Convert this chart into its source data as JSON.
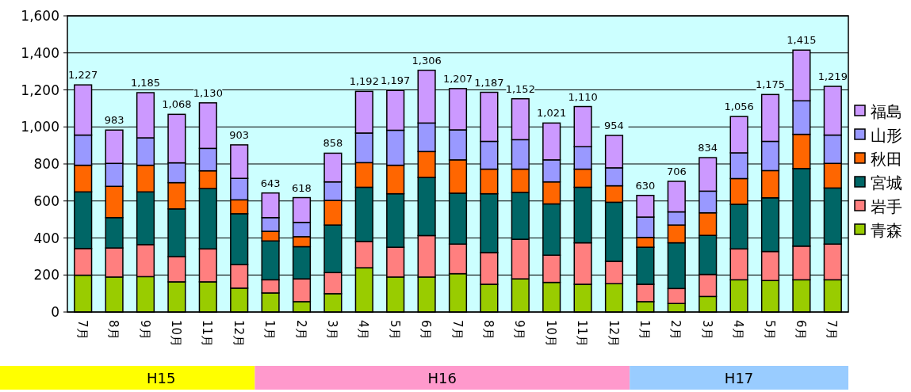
{
  "chart_data": {
    "type": "bar",
    "stacked": true,
    "categories": [
      "7月",
      "8月",
      "9月",
      "10月",
      "11月",
      "12月",
      "1月",
      "2月",
      "3月",
      "4月",
      "5月",
      "6月",
      "7月",
      "8月",
      "9月",
      "10月",
      "11月",
      "12月",
      "1月",
      "2月",
      "3月",
      "4月",
      "5月",
      "6月",
      "7月"
    ],
    "series": [
      {
        "name": "青森",
        "color": "#99cc00",
        "values": [
          199,
          189,
          191,
          163,
          163,
          129,
          103,
          56,
          99,
          239,
          189,
          189,
          207,
          150,
          179,
          160,
          150,
          153,
          56,
          46,
          84,
          174,
          170,
          174,
          174
        ]
      },
      {
        "name": "岩手",
        "color": "#ff7f7f",
        "values": [
          144,
          157,
          173,
          136,
          178,
          127,
          71,
          123,
          114,
          142,
          161,
          224,
          160,
          171,
          214,
          147,
          224,
          121,
          94,
          81,
          119,
          167,
          157,
          182,
          193
        ]
      },
      {
        "name": "宮城",
        "color": "#006666",
        "values": [
          306,
          164,
          285,
          258,
          326,
          275,
          210,
          174,
          257,
          293,
          289,
          314,
          275,
          318,
          253,
          277,
          300,
          319,
          200,
          247,
          211,
          241,
          290,
          419,
          303
        ]
      },
      {
        "name": "秋田",
        "color": "#ff6600",
        "values": [
          144,
          169,
          144,
          142,
          96,
          75,
          52,
          54,
          133,
          133,
          154,
          140,
          180,
          133,
          126,
          119,
          98,
          89,
          53,
          96,
          122,
          139,
          147,
          185,
          133
        ]
      },
      {
        "name": "山形",
        "color": "#9999ff",
        "values": [
          163,
          124,
          148,
          107,
          121,
          116,
          74,
          77,
          100,
          160,
          189,
          154,
          162,
          150,
          159,
          119,
          121,
          97,
          110,
          71,
          117,
          139,
          158,
          181,
          153
        ]
      },
      {
        "name": "福島",
        "color": "#cc99ff",
        "values": [
          271,
          180,
          244,
          262,
          246,
          181,
          133,
          134,
          155,
          225,
          215,
          285,
          223,
          265,
          221,
          199,
          217,
          175,
          117,
          165,
          181,
          196,
          253,
          274,
          263
        ]
      }
    ],
    "totals": [
      "1,227",
      "983",
      "1,185",
      "1,068",
      "1,130",
      "903",
      "643",
      "618",
      "858",
      "1,192",
      "1,197",
      "1,306",
      "1,207",
      "1,187",
      "1,152",
      "1,021",
      "1,110",
      "954",
      "630",
      "706",
      "834",
      "1,056",
      "1,175",
      "1,415",
      "1,219"
    ],
    "ylim": [
      0,
      1600
    ],
    "yticks": [
      0,
      200,
      400,
      600,
      800,
      {
        "value": 1000,
        "label": "1,000"
      },
      {
        "value": 1200,
        "label": "1,200"
      },
      {
        "value": 1400,
        "label": "1,400"
      },
      {
        "value": 1600,
        "label": "1,600"
      }
    ],
    "grid": "y",
    "legend": "right",
    "annotations": [
      "H15",
      "H16",
      "H17"
    ]
  }
}
